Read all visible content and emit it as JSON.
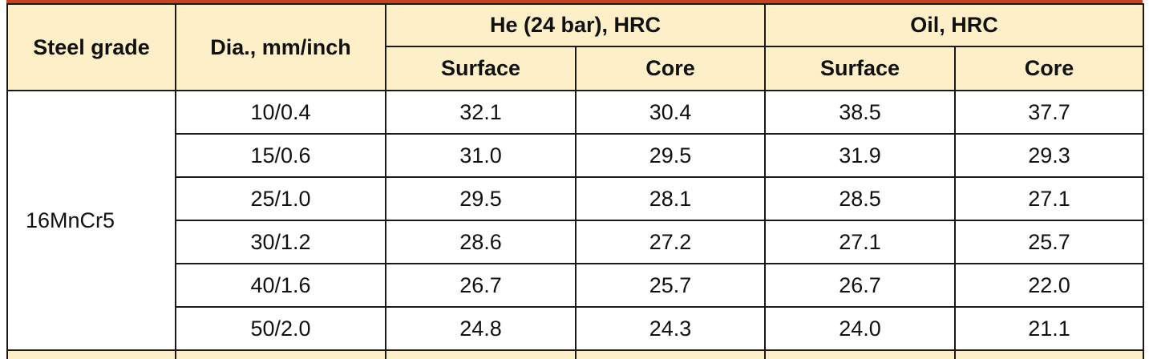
{
  "table": {
    "header": {
      "steel_grade": "Steel grade",
      "diameter": "Dia., mm/inch",
      "helium": "He (24 bar), HRC",
      "oil": "Oil, HRC",
      "subheaders": [
        "Surface",
        "Core",
        "Surface",
        "Core"
      ]
    },
    "grade": "16MnCr5",
    "rows": [
      [
        "10/0.4",
        "32.1",
        "30.4",
        "38.5",
        "37.7"
      ],
      [
        "15/0.6",
        "31.0",
        "29.5",
        "31.9",
        "29.3"
      ],
      [
        "25/1.0",
        "29.5",
        "28.1",
        "28.5",
        "27.1"
      ],
      [
        "30/1.2",
        "28.6",
        "27.2",
        "27.1",
        "25.7"
      ],
      [
        "40/1.6",
        "26.7",
        "25.7",
        "26.7",
        "22.0"
      ],
      [
        "50/2.0",
        "24.8",
        "24.3",
        "24.0",
        "21.1"
      ]
    ]
  }
}
